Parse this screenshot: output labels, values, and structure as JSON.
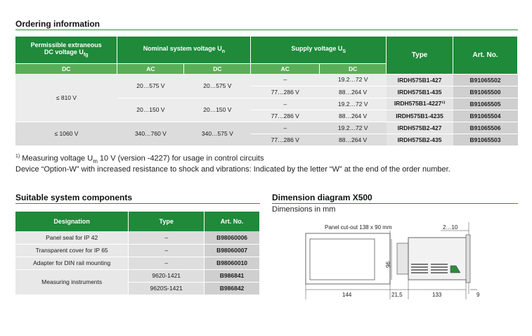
{
  "ordering": {
    "title": "Ordering information",
    "headers": {
      "col1_line1": "Permissible extraneous",
      "col1_line2": "DC voltage U",
      "col1_sub": "fg",
      "nominal": "Nominal system voltage U",
      "nominal_sub": "n",
      "supply": "Supply voltage U",
      "supply_sub": "S",
      "type": "Type",
      "art": "Art. No."
    },
    "subheaders": {
      "dc1": "DC",
      "ac1": "AC",
      "dc2": "DC",
      "ac2": "AC",
      "dc3": "DC"
    },
    "groups": {
      "g1": {
        "dc": "≤ 810 V"
      },
      "g2": {
        "dc": "≤ 1060 V"
      }
    },
    "rows": [
      {
        "nom_ac": "20…575 V",
        "nom_dc": "20…575 V",
        "sup_ac": "–",
        "sup_dc": "19.2…72 V",
        "type": "IRDH575B1-427",
        "art": "B91065502"
      },
      {
        "nom_ac": "",
        "nom_dc": "",
        "sup_ac": "77…286 V",
        "sup_dc": "88…264 V",
        "type": "IRDH575B1-435",
        "art": "B91065500"
      },
      {
        "nom_ac": "20…150 V",
        "nom_dc": "20…150 V",
        "sup_ac": "–",
        "sup_dc": "19.2…72 V",
        "type": "IRDH575B1-4227¹⁾",
        "art": "B91065505"
      },
      {
        "nom_ac": "",
        "nom_dc": "",
        "sup_ac": "77…286 V",
        "sup_dc": "88…264 V",
        "type": "IRDH575B1-4235",
        "art": "B91065504"
      },
      {
        "nom_ac": "340…760 V",
        "nom_dc": "340…575 V",
        "sup_ac": "–",
        "sup_dc": "19.2…72 V",
        "type": "IRDH575B2-427",
        "art": "B91065506"
      },
      {
        "nom_ac": "",
        "nom_dc": "",
        "sup_ac": "77…286 V",
        "sup_dc": "88…264 V",
        "type": "IRDH575B2-435",
        "art": "B91065503"
      }
    ],
    "footnote_mark": "1)",
    "footnote_text_a": " Measuring voltage U",
    "footnote_sub": "m",
    "footnote_text_b": " 10 V (version -4227) for usage in control circuits",
    "footnote2": "Device “Option-W” with increased resistance to shock and vibrations: Indicated by the letter “W” at the end of the order number."
  },
  "components": {
    "title": "Suitable system components",
    "headers": {
      "designation": "Designation",
      "type": "Type",
      "art": "Art. No."
    },
    "rows": [
      {
        "designation": "Panel seal for IP 42",
        "type": "–",
        "art": "B98060006"
      },
      {
        "designation": "Transparent cover for IP 65",
        "type": "–",
        "art": "B98060007"
      },
      {
        "designation": "Adapter for DIN rail mounting",
        "type": "–",
        "art": "B98060010"
      },
      {
        "designation": "Measuring instruments",
        "type": "9620-1421",
        "art": "B986841"
      },
      {
        "designation": "",
        "type": "9620S-1421",
        "art": "B986842"
      }
    ]
  },
  "dimension": {
    "title": "Dimension diagram X500",
    "subtitle": "Dimensions in mm",
    "cutout_label": "Panel cut-out 138 x 90 mm",
    "dim_2_10": "2…10",
    "dim_96": "96",
    "dim_144": "144",
    "dim_21_5": "21,5",
    "dim_133": "133",
    "dim_9": "9"
  }
}
